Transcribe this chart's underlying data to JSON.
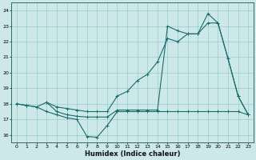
{
  "xlabel": "Humidex (Indice chaleur)",
  "xlim": [
    -0.5,
    23.5
  ],
  "ylim": [
    15.5,
    24.5
  ],
  "xticks": [
    0,
    1,
    2,
    3,
    4,
    5,
    6,
    7,
    8,
    9,
    10,
    11,
    12,
    13,
    14,
    15,
    16,
    17,
    18,
    19,
    20,
    21,
    22,
    23
  ],
  "yticks": [
    16,
    17,
    18,
    19,
    20,
    21,
    22,
    23,
    24
  ],
  "bg_color": "#cce8e8",
  "grid_color": "#99cccc",
  "line_color": "#1a6b6b",
  "series1_x": [
    0,
    1,
    2,
    3,
    4,
    5,
    6,
    7,
    8,
    9,
    10,
    11,
    12,
    13,
    14,
    15,
    16,
    17,
    18,
    19,
    20,
    21,
    22,
    23
  ],
  "series1_y": [
    18.0,
    17.9,
    17.8,
    17.5,
    17.3,
    17.1,
    17.0,
    15.9,
    15.85,
    16.6,
    17.5,
    17.5,
    17.5,
    17.5,
    17.5,
    17.5,
    17.5,
    17.5,
    17.5,
    17.5,
    17.5,
    17.5,
    17.5,
    17.3
  ],
  "series2_x": [
    0,
    1,
    2,
    3,
    4,
    5,
    6,
    7,
    8,
    9,
    10,
    11,
    12,
    13,
    14,
    15,
    16,
    17,
    18,
    19,
    20,
    21,
    22,
    23
  ],
  "series2_y": [
    18.0,
    17.9,
    17.8,
    18.1,
    17.8,
    17.7,
    17.6,
    17.5,
    17.5,
    17.5,
    18.5,
    18.8,
    19.5,
    19.9,
    20.7,
    22.2,
    22.0,
    22.5,
    22.5,
    23.2,
    23.2,
    20.9,
    18.5,
    17.3
  ],
  "series3_x": [
    3,
    4,
    5,
    6,
    7,
    8,
    9,
    10,
    11,
    12,
    13,
    14,
    15,
    16,
    17,
    18,
    19,
    20,
    21,
    22,
    23
  ],
  "series3_y": [
    18.1,
    17.5,
    17.3,
    17.2,
    17.15,
    17.15,
    17.15,
    17.6,
    17.6,
    17.6,
    17.6,
    17.6,
    23.0,
    22.7,
    22.5,
    22.5,
    23.8,
    23.2,
    20.9,
    18.5,
    17.3
  ]
}
